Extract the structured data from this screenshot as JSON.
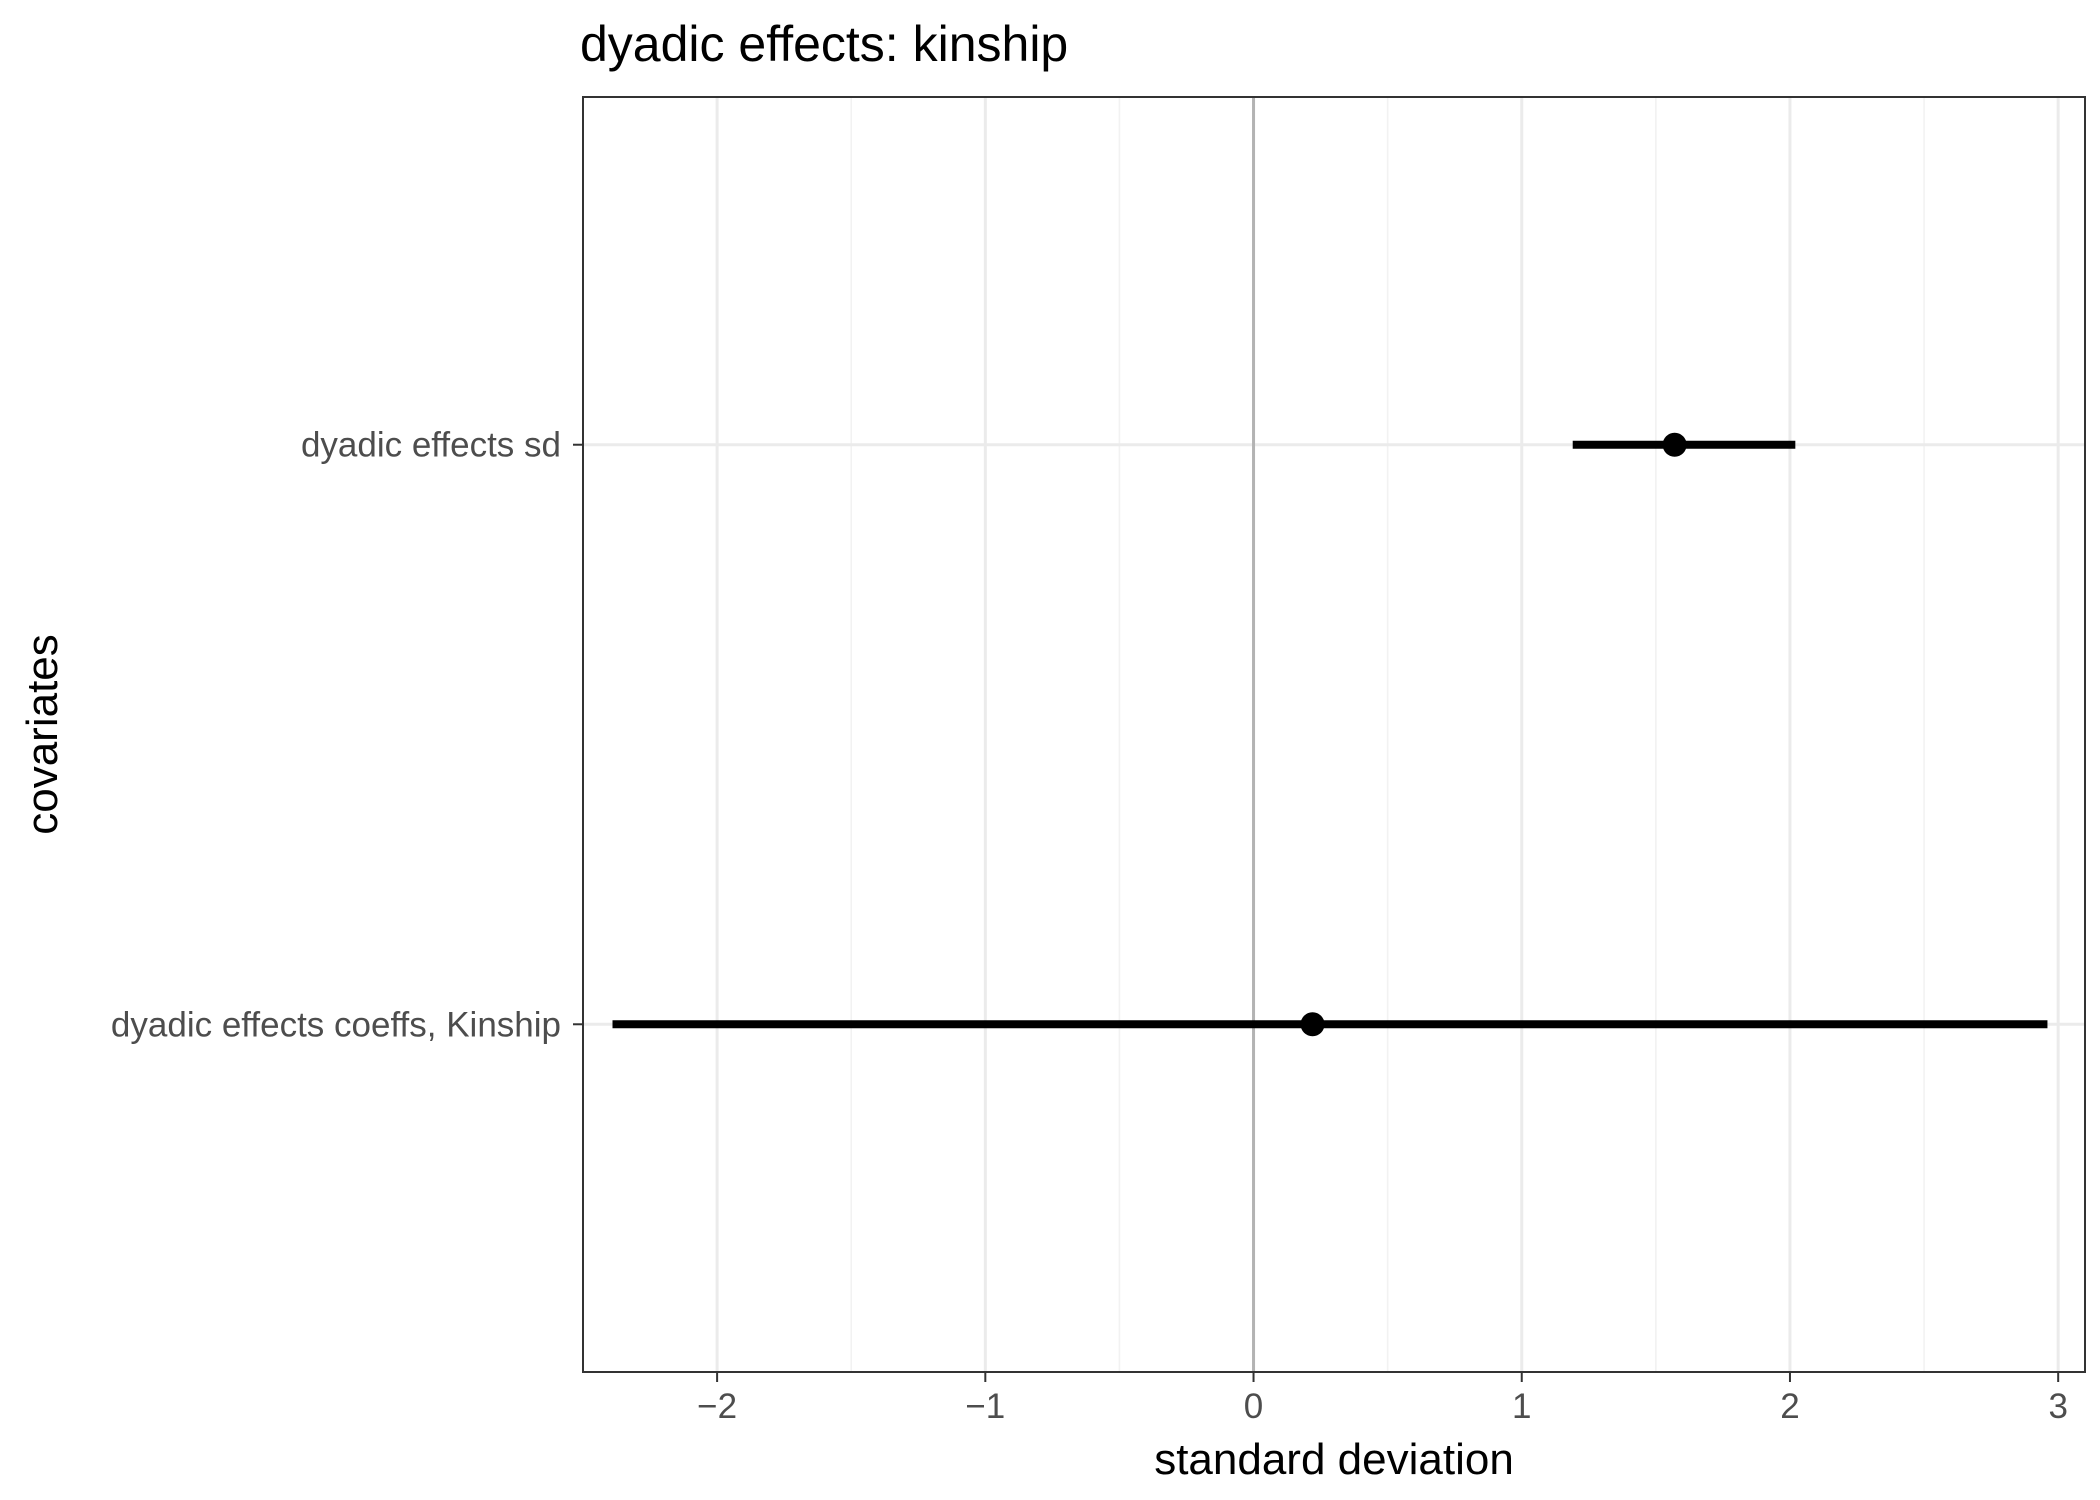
{
  "chart_data": {
    "type": "scatter",
    "title": "dyadic effects: kinship",
    "xlabel": "standard deviation",
    "ylabel": "covariates",
    "xlim": [
      -2.5,
      3.1
    ],
    "x_ticks": [
      -2,
      -1,
      0,
      1,
      2,
      3
    ],
    "x_tick_labels": [
      "−2",
      "−1",
      "0",
      "1",
      "2",
      "3"
    ],
    "categories": [
      "dyadic effects coeffs, Kinship",
      "dyadic effects sd"
    ],
    "estimates": [
      0.22,
      1.57
    ],
    "lower": [
      -2.39,
      1.19
    ],
    "upper": [
      2.96,
      2.02
    ],
    "reference_line_x": 0,
    "grid": true,
    "legend": "none",
    "colors": {
      "marks": "#000000",
      "reference_line": "#b3b3b3",
      "grid_major": "#ebebeb",
      "grid_minor": "#f2f2f2",
      "panel_border": "#333333",
      "tick_text": "#4d4d4d"
    }
  }
}
